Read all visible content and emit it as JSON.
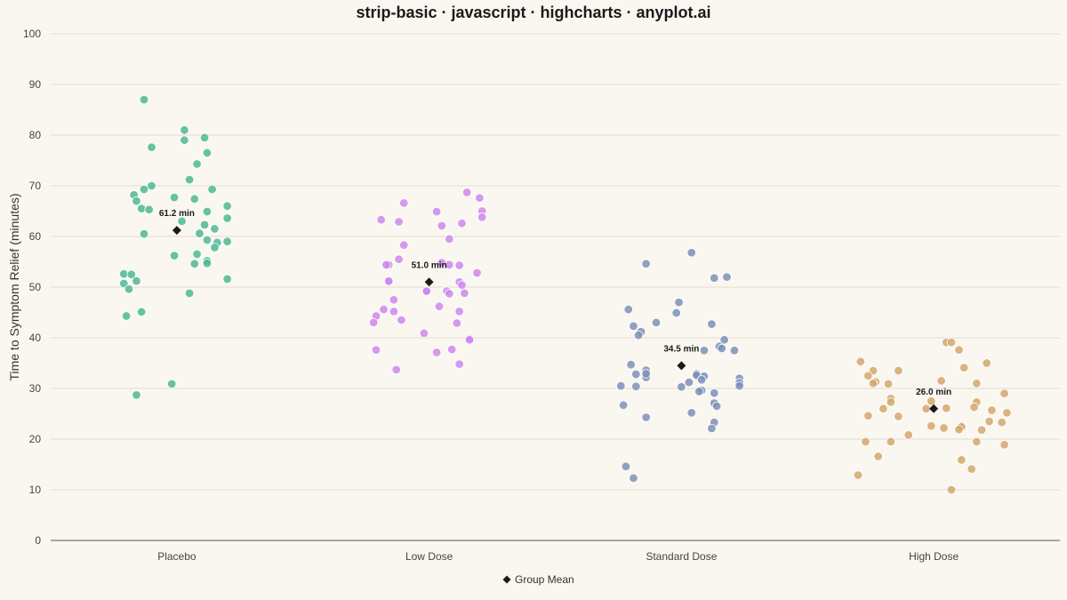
{
  "chart_data": {
    "type": "scatter",
    "title": "strip-basic · javascript · highcharts · anyplot.ai",
    "xlabel": "",
    "ylabel": "Time to Symptom Relief (minutes)",
    "ylim": [
      0,
      100
    ],
    "yticks": [
      0,
      10,
      20,
      30,
      40,
      50,
      60,
      70,
      80,
      90,
      100
    ],
    "grid": true,
    "legend": "bottom-center",
    "categories": [
      "Placebo",
      "Low Dose",
      "Standard Dose",
      "High Dose"
    ],
    "series": [
      {
        "category": "Placebo",
        "color": "#4DB894",
        "points": [
          {
            "jitter": -0.13,
            "y": 87
          },
          {
            "jitter": -0.1,
            "y": 77.6
          },
          {
            "jitter": 0.03,
            "y": 81
          },
          {
            "jitter": 0.03,
            "y": 79
          },
          {
            "jitter": 0.11,
            "y": 79.5
          },
          {
            "jitter": 0.12,
            "y": 76.5
          },
          {
            "jitter": 0.08,
            "y": 74.3
          },
          {
            "jitter": 0.05,
            "y": 71.2
          },
          {
            "jitter": -0.1,
            "y": 70
          },
          {
            "jitter": -0.13,
            "y": 69.3
          },
          {
            "jitter": -0.17,
            "y": 68.2
          },
          {
            "jitter": -0.16,
            "y": 67
          },
          {
            "jitter": -0.01,
            "y": 67.7
          },
          {
            "jitter": 0.07,
            "y": 67.4
          },
          {
            "jitter": 0.14,
            "y": 69.3
          },
          {
            "jitter": 0.2,
            "y": 66
          },
          {
            "jitter": -0.14,
            "y": 65.5
          },
          {
            "jitter": -0.11,
            "y": 65.3
          },
          {
            "jitter": 0.12,
            "y": 64.9
          },
          {
            "jitter": 0.2,
            "y": 63.6
          },
          {
            "jitter": 0.02,
            "y": 63
          },
          {
            "jitter": 0.11,
            "y": 62.3
          },
          {
            "jitter": 0.15,
            "y": 61.5
          },
          {
            "jitter": -0.13,
            "y": 60.5
          },
          {
            "jitter": 0.09,
            "y": 60.6
          },
          {
            "jitter": 0.12,
            "y": 59.3
          },
          {
            "jitter": 0.16,
            "y": 58.8
          },
          {
            "jitter": 0.2,
            "y": 59
          },
          {
            "jitter": 0.15,
            "y": 57.8
          },
          {
            "jitter": -0.01,
            "y": 56.2
          },
          {
            "jitter": 0.08,
            "y": 56.5
          },
          {
            "jitter": 0.07,
            "y": 54.6
          },
          {
            "jitter": 0.12,
            "y": 55.2
          },
          {
            "jitter": 0.12,
            "y": 54.7
          },
          {
            "jitter": 0.2,
            "y": 51.6
          },
          {
            "jitter": -0.21,
            "y": 52.6
          },
          {
            "jitter": -0.18,
            "y": 52.5
          },
          {
            "jitter": -0.16,
            "y": 51.2
          },
          {
            "jitter": -0.21,
            "y": 50.7
          },
          {
            "jitter": -0.19,
            "y": 49.6
          },
          {
            "jitter": 0.05,
            "y": 48.8
          },
          {
            "jitter": -0.14,
            "y": 45.1
          },
          {
            "jitter": -0.2,
            "y": 44.3
          },
          {
            "jitter": -0.02,
            "y": 30.9
          },
          {
            "jitter": -0.16,
            "y": 28.7
          }
        ]
      },
      {
        "category": "Low Dose",
        "color": "#CC88EC",
        "points": [
          {
            "jitter": 0.15,
            "y": 68.7
          },
          {
            "jitter": 0.2,
            "y": 67.6
          },
          {
            "jitter": -0.1,
            "y": 66.6
          },
          {
            "jitter": 0.03,
            "y": 64.9
          },
          {
            "jitter": 0.21,
            "y": 65
          },
          {
            "jitter": 0.21,
            "y": 63.8
          },
          {
            "jitter": -0.19,
            "y": 63.3
          },
          {
            "jitter": -0.12,
            "y": 62.9
          },
          {
            "jitter": 0.05,
            "y": 62.1
          },
          {
            "jitter": 0.13,
            "y": 62.6
          },
          {
            "jitter": 0.08,
            "y": 59.5
          },
          {
            "jitter": -0.1,
            "y": 58.3
          },
          {
            "jitter": -0.12,
            "y": 55.5
          },
          {
            "jitter": -0.16,
            "y": 54.4
          },
          {
            "jitter": -0.17,
            "y": 54.4
          },
          {
            "jitter": 0.05,
            "y": 54.8
          },
          {
            "jitter": 0.08,
            "y": 54.4
          },
          {
            "jitter": 0.12,
            "y": 54.3
          },
          {
            "jitter": 0.19,
            "y": 52.8
          },
          {
            "jitter": -0.16,
            "y": 51
          },
          {
            "jitter": -0.16,
            "y": 51.2
          },
          {
            "jitter": 0.12,
            "y": 51
          },
          {
            "jitter": 0.13,
            "y": 50.4
          },
          {
            "jitter": -0.01,
            "y": 49.1
          },
          {
            "jitter": -0.01,
            "y": 49.2
          },
          {
            "jitter": 0.07,
            "y": 49.2
          },
          {
            "jitter": 0.08,
            "y": 48.7
          },
          {
            "jitter": 0.14,
            "y": 48.8
          },
          {
            "jitter": -0.14,
            "y": 47.5
          },
          {
            "jitter": 0.04,
            "y": 46.2
          },
          {
            "jitter": -0.18,
            "y": 45.6
          },
          {
            "jitter": -0.14,
            "y": 45.2
          },
          {
            "jitter": 0.12,
            "y": 45.2
          },
          {
            "jitter": -0.21,
            "y": 44.3
          },
          {
            "jitter": -0.11,
            "y": 43.5
          },
          {
            "jitter": -0.22,
            "y": 43
          },
          {
            "jitter": 0.11,
            "y": 42.9
          },
          {
            "jitter": -0.02,
            "y": 40.9
          },
          {
            "jitter": 0.16,
            "y": 39.8
          },
          {
            "jitter": 0.16,
            "y": 39.6
          },
          {
            "jitter": -0.21,
            "y": 37.6
          },
          {
            "jitter": 0.03,
            "y": 37.1
          },
          {
            "jitter": 0.09,
            "y": 37.7
          },
          {
            "jitter": 0.12,
            "y": 34.8
          },
          {
            "jitter": -0.13,
            "y": 33.7
          }
        ]
      },
      {
        "category": "Standard Dose",
        "color": "#7B91B9",
        "points": [
          {
            "jitter": 0.04,
            "y": 56.8
          },
          {
            "jitter": -0.14,
            "y": 54.6
          },
          {
            "jitter": 0.13,
            "y": 51.8
          },
          {
            "jitter": 0.18,
            "y": 52
          },
          {
            "jitter": -0.01,
            "y": 47
          },
          {
            "jitter": -0.21,
            "y": 45.6
          },
          {
            "jitter": -0.02,
            "y": 44.9
          },
          {
            "jitter": -0.1,
            "y": 43
          },
          {
            "jitter": 0.12,
            "y": 42.7
          },
          {
            "jitter": -0.19,
            "y": 42.3
          },
          {
            "jitter": -0.16,
            "y": 41.2
          },
          {
            "jitter": -0.17,
            "y": 40.5
          },
          {
            "jitter": 0.17,
            "y": 39.6
          },
          {
            "jitter": 0.15,
            "y": 38.3
          },
          {
            "jitter": 0.16,
            "y": 37.9
          },
          {
            "jitter": 0.09,
            "y": 37.5
          },
          {
            "jitter": 0.21,
            "y": 37.5
          },
          {
            "jitter": -0.2,
            "y": 34.7
          },
          {
            "jitter": -0.14,
            "y": 33.6
          },
          {
            "jitter": -0.18,
            "y": 32.8
          },
          {
            "jitter": -0.14,
            "y": 32.2
          },
          {
            "jitter": -0.14,
            "y": 32.9
          },
          {
            "jitter": 0.06,
            "y": 32.9
          },
          {
            "jitter": 0.06,
            "y": 32.6
          },
          {
            "jitter": 0.09,
            "y": 32.4
          },
          {
            "jitter": 0.08,
            "y": 31.7
          },
          {
            "jitter": 0.03,
            "y": 31.2
          },
          {
            "jitter": 0.23,
            "y": 32
          },
          {
            "jitter": 0.23,
            "y": 31.1
          },
          {
            "jitter": 0.23,
            "y": 30.5
          },
          {
            "jitter": -0.24,
            "y": 30.5
          },
          {
            "jitter": -0.18,
            "y": 30.4
          },
          {
            "jitter": 0.0,
            "y": 30.3
          },
          {
            "jitter": 0.08,
            "y": 29.6
          },
          {
            "jitter": 0.07,
            "y": 29.4
          },
          {
            "jitter": 0.13,
            "y": 29.1
          },
          {
            "jitter": 0.13,
            "y": 27.1
          },
          {
            "jitter": 0.14,
            "y": 26.5
          },
          {
            "jitter": -0.23,
            "y": 26.7
          },
          {
            "jitter": -0.14,
            "y": 24.3
          },
          {
            "jitter": 0.04,
            "y": 25.2
          },
          {
            "jitter": 0.13,
            "y": 23.3
          },
          {
            "jitter": 0.12,
            "y": 22.1
          },
          {
            "jitter": -0.22,
            "y": 14.6
          },
          {
            "jitter": -0.19,
            "y": 12.3
          }
        ]
      },
      {
        "category": "High Dose",
        "color": "#D2A86C",
        "points": [
          {
            "jitter": 0.05,
            "y": 39.1
          },
          {
            "jitter": 0.07,
            "y": 39.1
          },
          {
            "jitter": 0.1,
            "y": 37.6
          },
          {
            "jitter": -0.29,
            "y": 35.3
          },
          {
            "jitter": 0.21,
            "y": 35
          },
          {
            "jitter": 0.12,
            "y": 34.1
          },
          {
            "jitter": -0.14,
            "y": 33.5
          },
          {
            "jitter": -0.24,
            "y": 33.5
          },
          {
            "jitter": -0.26,
            "y": 32.5
          },
          {
            "jitter": 0.03,
            "y": 31.5
          },
          {
            "jitter": -0.23,
            "y": 31.3
          },
          {
            "jitter": -0.24,
            "y": 31
          },
          {
            "jitter": -0.18,
            "y": 30.9
          },
          {
            "jitter": 0.17,
            "y": 31
          },
          {
            "jitter": 0.28,
            "y": 29
          },
          {
            "jitter": -0.17,
            "y": 28
          },
          {
            "jitter": -0.17,
            "y": 27.3
          },
          {
            "jitter": -0.01,
            "y": 27.5
          },
          {
            "jitter": 0.17,
            "y": 27.3
          },
          {
            "jitter": 0.16,
            "y": 26.3
          },
          {
            "jitter": -0.2,
            "y": 26
          },
          {
            "jitter": -0.03,
            "y": 26
          },
          {
            "jitter": 0.05,
            "y": 26.1
          },
          {
            "jitter": 0.23,
            "y": 25.7
          },
          {
            "jitter": 0.29,
            "y": 25.2
          },
          {
            "jitter": -0.26,
            "y": 24.6
          },
          {
            "jitter": -0.14,
            "y": 24.5
          },
          {
            "jitter": 0.22,
            "y": 23.5
          },
          {
            "jitter": -0.01,
            "y": 22.6
          },
          {
            "jitter": 0.11,
            "y": 22.6
          },
          {
            "jitter": 0.11,
            "y": 22.4
          },
          {
            "jitter": 0.04,
            "y": 22.2
          },
          {
            "jitter": 0.1,
            "y": 21.9
          },
          {
            "jitter": 0.19,
            "y": 21.8
          },
          {
            "jitter": 0.27,
            "y": 23.3
          },
          {
            "jitter": -0.1,
            "y": 20.8
          },
          {
            "jitter": -0.27,
            "y": 19.5
          },
          {
            "jitter": -0.17,
            "y": 19.5
          },
          {
            "jitter": 0.17,
            "y": 19.5
          },
          {
            "jitter": 0.28,
            "y": 18.9
          },
          {
            "jitter": -0.22,
            "y": 16.6
          },
          {
            "jitter": 0.11,
            "y": 15.9
          },
          {
            "jitter": 0.15,
            "y": 14.1
          },
          {
            "jitter": -0.3,
            "y": 12.9
          },
          {
            "jitter": 0.07,
            "y": 10
          }
        ]
      }
    ],
    "means": [
      {
        "category": "Placebo",
        "value": 61.2,
        "label": "61.2 min"
      },
      {
        "category": "Low Dose",
        "value": 51.0,
        "label": "51.0 min"
      },
      {
        "category": "Standard Dose",
        "value": 34.5,
        "label": "34.5 min"
      },
      {
        "category": "High Dose",
        "value": 26.0,
        "label": "26.0 min"
      }
    ],
    "legend_items": [
      {
        "label": "Group Mean",
        "marker": "diamond",
        "color": "#1a1a1a"
      }
    ]
  }
}
